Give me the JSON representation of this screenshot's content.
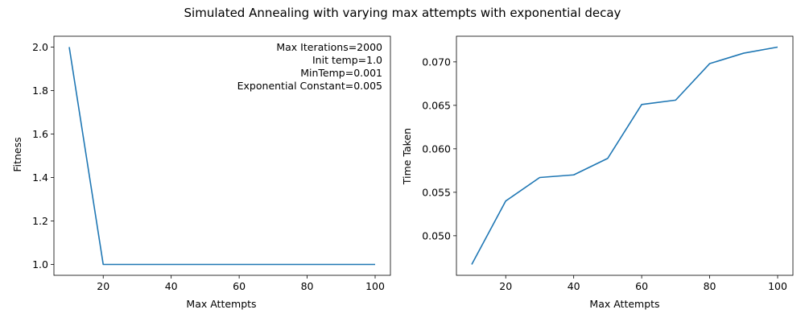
{
  "figure": {
    "suptitle": "Simulated Annealing with varying max attempts with exponential decay",
    "series_color": "#1f77b4"
  },
  "chart_data": [
    {
      "type": "line",
      "title": "",
      "xlabel": "Max Attempts",
      "ylabel": "Fitness",
      "x": [
        10,
        20,
        30,
        40,
        50,
        60,
        70,
        80,
        90,
        100
      ],
      "series": [
        {
          "values": [
            2.0,
            1.0,
            1.0,
            1.0,
            1.0,
            1.0,
            1.0,
            1.0,
            1.0,
            1.0
          ]
        }
      ],
      "xlim": [
        5.5,
        104.5
      ],
      "ylim": [
        0.95,
        2.05
      ],
      "xticks": [
        20,
        40,
        60,
        80,
        100
      ],
      "yticks": [
        1.0,
        1.2,
        1.4,
        1.6,
        1.8,
        2.0
      ],
      "ytick_format": 1,
      "annotations": [
        "Max Iterations=2000",
        "Init temp=1.0",
        "MinTemp=0.001",
        "Exponential Constant=0.005"
      ],
      "grid": false
    },
    {
      "type": "line",
      "title": "",
      "xlabel": "Max Attempts",
      "ylabel": "Time Taken",
      "x": [
        10,
        20,
        30,
        40,
        50,
        60,
        70,
        80,
        90,
        100
      ],
      "series": [
        {
          "values": [
            0.0467,
            0.054,
            0.0567,
            0.057,
            0.0589,
            0.0651,
            0.0656,
            0.0698,
            0.071,
            0.0717
          ]
        }
      ],
      "xlim": [
        5.5,
        104.5
      ],
      "ylim": [
        0.04545,
        0.07295
      ],
      "xticks": [
        20,
        40,
        60,
        80,
        100
      ],
      "yticks": [
        0.05,
        0.055,
        0.06,
        0.065,
        0.07
      ],
      "ytick_format": 3,
      "annotations": [],
      "grid": false
    }
  ]
}
